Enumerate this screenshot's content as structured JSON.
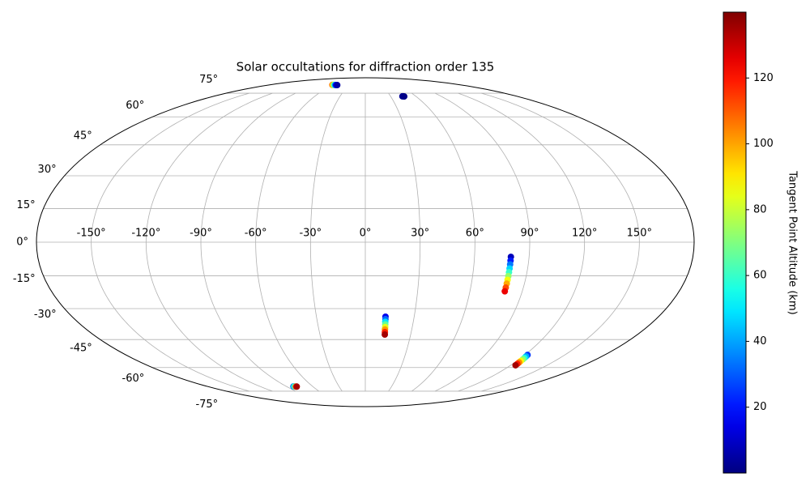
{
  "chart_data": {
    "type": "scatter",
    "projection": "mollweide",
    "title": "Solar occultations for diffraction order 135",
    "x": [
      -62,
      -60,
      -58,
      -56,
      -54,
      -52,
      44,
      45,
      46,
      80,
      80,
      80,
      80,
      80,
      80,
      80,
      80,
      80,
      80,
      12.4,
      12.5,
      12.5,
      12.6,
      12.7,
      12.7,
      12.8,
      12.9,
      122,
      122.3,
      122.6,
      122.9,
      123.1,
      123.4,
      123.7,
      124,
      -82,
      -81,
      -79.5,
      -78.5
    ],
    "values": [
      81.6,
      81.6,
      81.5,
      81.5,
      81.4,
      81.4,
      72.8,
      72.8,
      72.7,
      -6.5,
      -8.2,
      -9.9,
      -11.7,
      -13.4,
      -15.1,
      -16.8,
      -18.5,
      -20.3,
      -22.0,
      -33.8,
      -35.0,
      -36.3,
      -37.5,
      -38.8,
      -40.0,
      -41.3,
      -42.5,
      -53,
      -53.8,
      -54.6,
      -55.4,
      -56.3,
      -57.1,
      -57.9,
      -58.7,
      -71.7,
      -71.7,
      -71.8,
      -71.8
    ],
    "c": [
      105,
      85,
      60,
      35,
      15,
      5,
      3,
      2,
      1,
      8,
      21,
      34,
      47,
      60,
      73,
      86,
      99,
      112,
      125,
      15,
      32,
      49,
      66,
      84,
      101,
      118,
      135,
      25,
      41,
      56,
      72,
      88,
      104,
      119,
      135,
      30,
      60,
      110,
      135
    ],
    "colormap": "jet",
    "clim": [
      0,
      140
    ],
    "colorbar_label": "Tangent Point Altitude (km)",
    "colorbar_ticks": [
      20,
      40,
      60,
      80,
      100,
      120
    ],
    "xlim": [
      -180,
      180
    ],
    "ylim": [
      -90,
      90
    ],
    "xticks": [
      {
        "value": -150,
        "label": "-150°"
      },
      {
        "value": -120,
        "label": "-120°"
      },
      {
        "value": -90,
        "label": "-90°"
      },
      {
        "value": -60,
        "label": "-60°"
      },
      {
        "value": -30,
        "label": "-30°"
      },
      {
        "value": 0,
        "label": "0°"
      },
      {
        "value": 30,
        "label": "30°"
      },
      {
        "value": 60,
        "label": "60°"
      },
      {
        "value": 90,
        "label": "90°"
      },
      {
        "value": 120,
        "label": "120°"
      },
      {
        "value": 150,
        "label": "150°"
      }
    ],
    "yticks": [
      {
        "value": -75,
        "label": "-75°"
      },
      {
        "value": -60,
        "label": "-60°"
      },
      {
        "value": -45,
        "label": "-45°"
      },
      {
        "value": -30,
        "label": "-30°"
      },
      {
        "value": -15,
        "label": "-15°"
      },
      {
        "value": 0,
        "label": "0°"
      },
      {
        "value": 15,
        "label": "15°"
      },
      {
        "value": 30,
        "label": "30°"
      },
      {
        "value": 45,
        "label": "45°"
      },
      {
        "value": 60,
        "label": "60°"
      },
      {
        "value": 75,
        "label": "75°"
      }
    ],
    "grid": true
  }
}
